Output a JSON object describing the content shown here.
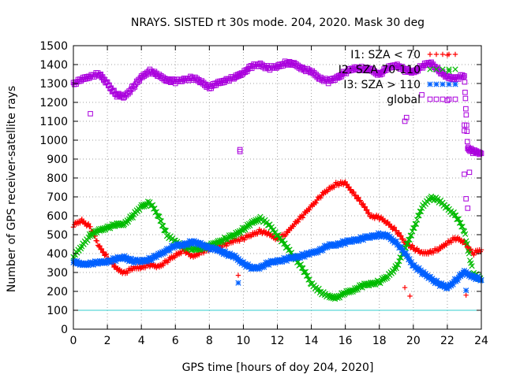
{
  "chart_data": {
    "type": "scatter",
    "title": "NRAYS. SISTED rt 30s mode. 204, 2020. Mask 30 deg",
    "xlabel": "GPS time [hours of doy 204, 2020]",
    "ylabel": "Number of GPS receiver-satellite rays",
    "xlim": [
      0,
      24
    ],
    "ylim": [
      0,
      1500
    ],
    "xticks": [
      0,
      2,
      4,
      6,
      8,
      10,
      12,
      14,
      16,
      18,
      20,
      22,
      24
    ],
    "yticks": [
      0,
      100,
      200,
      300,
      400,
      500,
      600,
      700,
      800,
      900,
      1000,
      1100,
      1200,
      1300,
      1400,
      1500
    ],
    "grid": true,
    "legend_position": "top-right",
    "reference_line": {
      "y": 100,
      "color": "#33cccc"
    },
    "series": [
      {
        "name": "I1: SZA < 70",
        "color": "#ff0000",
        "marker": "plus",
        "x": [
          0,
          0.5,
          1,
          1.5,
          2,
          2.5,
          3,
          3.5,
          4,
          4.5,
          5,
          5.5,
          6,
          6.5,
          7,
          7.5,
          8,
          8.5,
          9,
          9.5,
          10,
          10.5,
          11,
          11.5,
          12,
          12.5,
          13,
          13.5,
          14,
          14.5,
          15,
          15.5,
          16,
          16.5,
          17,
          17.5,
          18,
          18.5,
          19,
          19.5,
          20,
          20.5,
          21,
          21.5,
          22,
          22.5,
          23,
          23.5,
          24
        ],
        "values": [
          550,
          575,
          540,
          440,
          380,
          320,
          300,
          320,
          330,
          340,
          330,
          360,
          390,
          420,
          380,
          410,
          420,
          440,
          450,
          470,
          480,
          500,
          520,
          500,
          480,
          500,
          560,
          600,
          650,
          700,
          740,
          770,
          770,
          720,
          660,
          600,
          590,
          560,
          520,
          460,
          430,
          400,
          410,
          420,
          460,
          480,
          460,
          400,
          420
        ]
      },
      {
        "name": "I2: SZA 70-110",
        "color": "#00bb00",
        "marker": "x",
        "x": [
          0,
          0.5,
          1,
          1.5,
          2,
          2.5,
          3,
          3.5,
          4,
          4.5,
          5,
          5.5,
          6,
          6.5,
          7,
          7.5,
          8,
          8.5,
          9,
          9.5,
          10,
          10.5,
          11,
          11.5,
          12,
          12.5,
          13,
          13.5,
          14,
          14.5,
          15,
          15.5,
          16,
          16.5,
          17,
          17.5,
          18,
          18.5,
          19,
          19.5,
          20,
          20.5,
          21,
          21.5,
          22,
          22.5,
          23,
          23.5,
          24
        ],
        "values": [
          380,
          440,
          500,
          520,
          540,
          550,
          560,
          600,
          650,
          670,
          600,
          500,
          460,
          440,
          420,
          430,
          440,
          460,
          480,
          500,
          530,
          560,
          590,
          550,
          500,
          440,
          380,
          320,
          240,
          200,
          170,
          170,
          190,
          210,
          230,
          240,
          250,
          280,
          330,
          420,
          530,
          640,
          700,
          680,
          640,
          600,
          520,
          300,
          260
        ]
      },
      {
        "name": "I3: SZA > 110",
        "color": "#0060ff",
        "marker": "star",
        "x": [
          0,
          0.5,
          1,
          1.5,
          2,
          2.5,
          3,
          3.5,
          4,
          4.5,
          5,
          5.5,
          6,
          6.5,
          7,
          7.5,
          8,
          8.5,
          9,
          9.5,
          10,
          10.5,
          11,
          11.5,
          12,
          12.5,
          13,
          13.5,
          14,
          14.5,
          15,
          15.5,
          16,
          16.5,
          17,
          17.5,
          18,
          18.5,
          19,
          19.5,
          20,
          20.5,
          21,
          21.5,
          22,
          22.5,
          23,
          23.5,
          24
        ],
        "values": [
          360,
          340,
          350,
          350,
          360,
          370,
          380,
          360,
          360,
          370,
          390,
          420,
          440,
          450,
          460,
          450,
          430,
          420,
          400,
          380,
          350,
          320,
          330,
          350,
          360,
          370,
          380,
          390,
          400,
          420,
          440,
          450,
          460,
          470,
          480,
          490,
          500,
          490,
          460,
          400,
          340,
          300,
          270,
          240,
          220,
          260,
          300,
          280,
          260
        ]
      },
      {
        "name": "global",
        "color": "#aa00dd",
        "marker": "square",
        "x": [
          0,
          0.5,
          1,
          1.5,
          2,
          2.5,
          3,
          3.5,
          4,
          4.5,
          5,
          5.5,
          6,
          6.5,
          7,
          7.5,
          8,
          8.5,
          9,
          9.5,
          10,
          10.5,
          11,
          11.5,
          12,
          12.5,
          13,
          13.5,
          14,
          14.5,
          15,
          15.5,
          16,
          16.5,
          17,
          17.5,
          18,
          18.5,
          19,
          19.5,
          20,
          20.5,
          21,
          21.5,
          22,
          22.5,
          23,
          23.2,
          23.5,
          24
        ],
        "values": [
          1300,
          1320,
          1340,
          1350,
          1300,
          1240,
          1230,
          1280,
          1330,
          1370,
          1340,
          1320,
          1310,
          1320,
          1330,
          1310,
          1280,
          1300,
          1320,
          1330,
          1360,
          1390,
          1400,
          1380,
          1390,
          1410,
          1400,
          1380,
          1360,
          1330,
          1310,
          1330,
          1360,
          1380,
          1380,
          1370,
          1350,
          1380,
          1400,
          1370,
          1360,
          1390,
          1410,
          1370,
          1330,
          1330,
          1340,
          960,
          940,
          930
        ]
      }
    ],
    "outliers": [
      {
        "series": "global",
        "points": [
          [
            1.0,
            1140
          ],
          [
            9.8,
            940
          ],
          [
            9.8,
            950
          ],
          [
            19.5,
            1100
          ],
          [
            19.6,
            1120
          ],
          [
            22.0,
            1210
          ],
          [
            23.0,
            1080
          ],
          [
            23.0,
            1050
          ],
          [
            23.1,
            690
          ],
          [
            23.2,
            640
          ],
          [
            23.0,
            820
          ],
          [
            23.3,
            830
          ],
          [
            20.5,
            1240
          ]
        ]
      },
      {
        "series": "I1: SZA < 70",
        "points": [
          [
            9.7,
            285
          ],
          [
            19.5,
            220
          ],
          [
            19.8,
            175
          ],
          [
            22.0,
            1450
          ],
          [
            23.1,
            180
          ]
        ]
      },
      {
        "series": "I3: SZA > 110",
        "points": [
          [
            9.7,
            245
          ],
          [
            23.1,
            205
          ]
        ]
      },
      {
        "series": "I2: SZA 70-110",
        "points": [
          [
            22.1,
            1365
          ]
        ]
      }
    ]
  }
}
